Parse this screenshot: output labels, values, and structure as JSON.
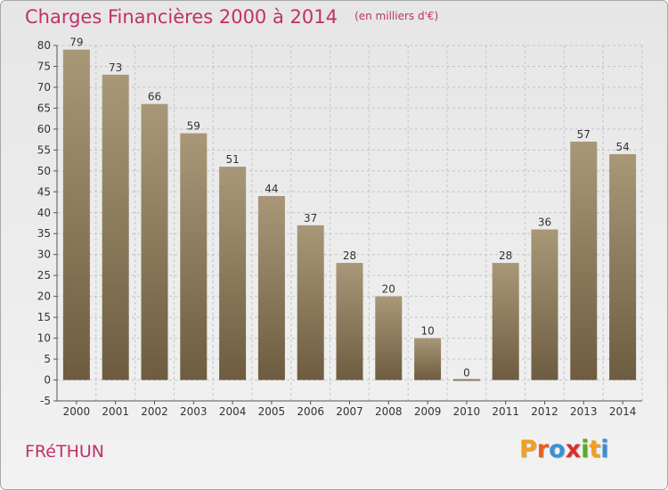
{
  "header": {
    "title": "Charges Financières 2000 à 2014",
    "subtitle": "(en milliers d'€)"
  },
  "footer": {
    "place": "FRéTHUN",
    "logo": {
      "letters": [
        "P",
        "r",
        "o",
        "x",
        "i",
        "t",
        "i"
      ],
      "colors": [
        "#f0a020",
        "#e8601c",
        "#3a8fd8",
        "#d8302c",
        "#5aaa2a",
        "#f0a020",
        "#3a8fd8"
      ]
    }
  },
  "chart_data": {
    "type": "bar",
    "title": "Charges Financières 2000 à 2014",
    "subtitle": "(en milliers d'€)",
    "categories": [
      "2000",
      "2001",
      "2002",
      "2003",
      "2004",
      "2005",
      "2006",
      "2007",
      "2008",
      "2009",
      "2010",
      "2011",
      "2012",
      "2013",
      "2014"
    ],
    "values": [
      79,
      73,
      66,
      59,
      51,
      44,
      37,
      28,
      20,
      10,
      0,
      28,
      36,
      57,
      54
    ],
    "data_labels": [
      "79",
      "73",
      "66",
      "59",
      "51",
      "44",
      "37",
      "28",
      "20",
      "10",
      "0",
      "28",
      "36",
      "57",
      "54"
    ],
    "ylim": [
      -5,
      80
    ],
    "yticks": [
      -5,
      0,
      5,
      10,
      15,
      20,
      25,
      30,
      35,
      40,
      45,
      50,
      55,
      60,
      65,
      70,
      75,
      80
    ],
    "xlabel": "",
    "ylabel": "",
    "grid": true,
    "bar_color_top": "#a89878",
    "bar_color_bottom": "#6e5c40"
  }
}
